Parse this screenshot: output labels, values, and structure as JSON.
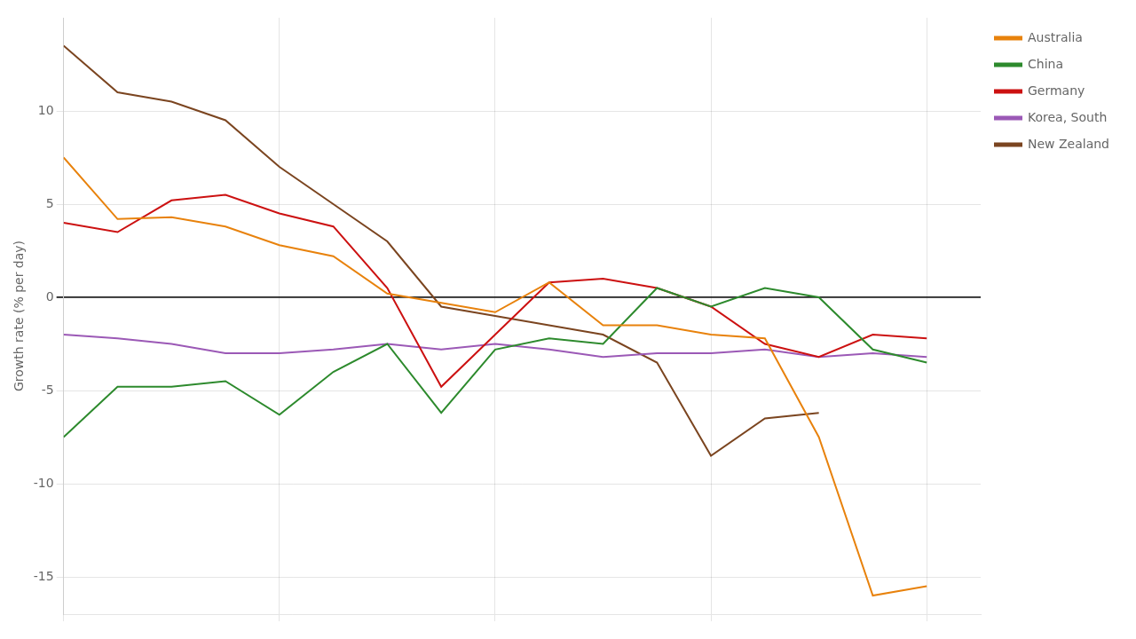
{
  "chart_data": {
    "type": "line",
    "y_label": "Growth rate (% per day)",
    "x": [
      0,
      1,
      2,
      3,
      4,
      5,
      6,
      7,
      8,
      9,
      10,
      11,
      12,
      13,
      14,
      15,
      16
    ],
    "series": [
      {
        "name": "Australia",
        "color": "#e8820c",
        "values": [
          7.5,
          4.2,
          4.3,
          3.8,
          2.8,
          2.2,
          0.2,
          -0.3,
          -0.8,
          0.8,
          -1.5,
          -1.5,
          -2.0,
          -2.2,
          -7.5,
          -16.0,
          -15.5
        ]
      },
      {
        "name": "China",
        "color": "#2d8a2d",
        "values": [
          -7.5,
          -4.8,
          -4.8,
          -4.5,
          -6.3,
          -4.0,
          -2.5,
          -6.2,
          -2.8,
          -2.2,
          -2.5,
          0.5,
          -0.5,
          0.5,
          0.0,
          -2.8,
          -3.5
        ]
      },
      {
        "name": "Germany",
        "color": "#cc1111",
        "values": [
          4.0,
          3.5,
          5.2,
          5.5,
          4.5,
          3.8,
          0.5,
          -4.8,
          -2.0,
          0.8,
          1.0,
          0.5,
          -0.5,
          -2.5,
          -3.2,
          -2.0,
          -2.2
        ]
      },
      {
        "name": "Korea, South",
        "color": "#9b59b6",
        "values": [
          -2.0,
          -2.2,
          -2.5,
          -3.0,
          -3.0,
          -2.8,
          -2.5,
          -2.8,
          -2.5,
          -2.8,
          -3.2,
          -3.0,
          -3.0,
          -2.8,
          -3.2,
          -3.0,
          -3.2
        ]
      },
      {
        "name": "New Zealand",
        "color": "#7b4520",
        "values": [
          13.5,
          11.0,
          10.5,
          9.5,
          7.0,
          5.0,
          3.0,
          -0.5,
          -1.0,
          -1.5,
          -2.0,
          -3.5,
          -8.5,
          -6.5,
          -6.2,
          null,
          null
        ]
      }
    ],
    "xlim": [
      0,
      17
    ],
    "xticks": [
      0,
      4,
      8,
      12,
      16
    ],
    "ylim": [
      -17,
      15
    ],
    "yticks": [
      -15,
      -10,
      -5,
      0,
      5,
      10
    ],
    "tick_labels": "y",
    "grid": true,
    "legend": "right"
  }
}
